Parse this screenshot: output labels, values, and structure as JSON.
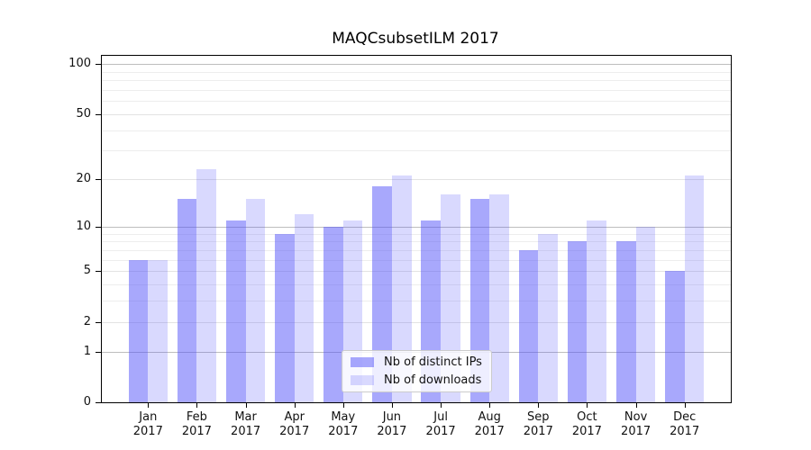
{
  "title": "MAQCsubsetILM 2017",
  "chart_data": {
    "type": "bar",
    "title": "MAQCsubsetILM 2017",
    "categories": [
      "Jan 2017",
      "Feb 2017",
      "Mar 2017",
      "Apr 2017",
      "May 2017",
      "Jun 2017",
      "Jul 2017",
      "Aug 2017",
      "Sep 2017",
      "Oct 2017",
      "Nov 2017",
      "Dec 2017"
    ],
    "series": [
      {
        "name": "Nb of distinct IPs",
        "color": "rgba(82,82,250,0.5)",
        "values": [
          6,
          15,
          11,
          9,
          10,
          18,
          11,
          15,
          7,
          8,
          8,
          5
        ]
      },
      {
        "name": "Nb of downloads",
        "color": "rgba(82,82,250,0.22)",
        "values": [
          6,
          23,
          15,
          12,
          11,
          21,
          16,
          16,
          9,
          11,
          10,
          21
        ]
      }
    ],
    "xlabel": "",
    "ylabel": "",
    "y_scale": "log10(1+y)",
    "ylim": [
      0,
      112
    ],
    "y_ticks": [
      100,
      50,
      20,
      10,
      5,
      2,
      1,
      0
    ],
    "y_emphasized_gridlines": [
      100,
      10,
      1
    ],
    "y_minor_gridlines": [
      3,
      4,
      6,
      7,
      8,
      9,
      30,
      40,
      60,
      70,
      80,
      90
    ],
    "grid": "horizontal",
    "legend_position": "lower center inside axes"
  },
  "colors": {
    "bar_base": "#5252fa",
    "grid_minor": "#ededed",
    "grid_major": "#e3e3e3",
    "grid_emphasis": "#bdbdbd",
    "axis": "#000000",
    "text": "#111111",
    "legend_border": "#cccccc"
  }
}
